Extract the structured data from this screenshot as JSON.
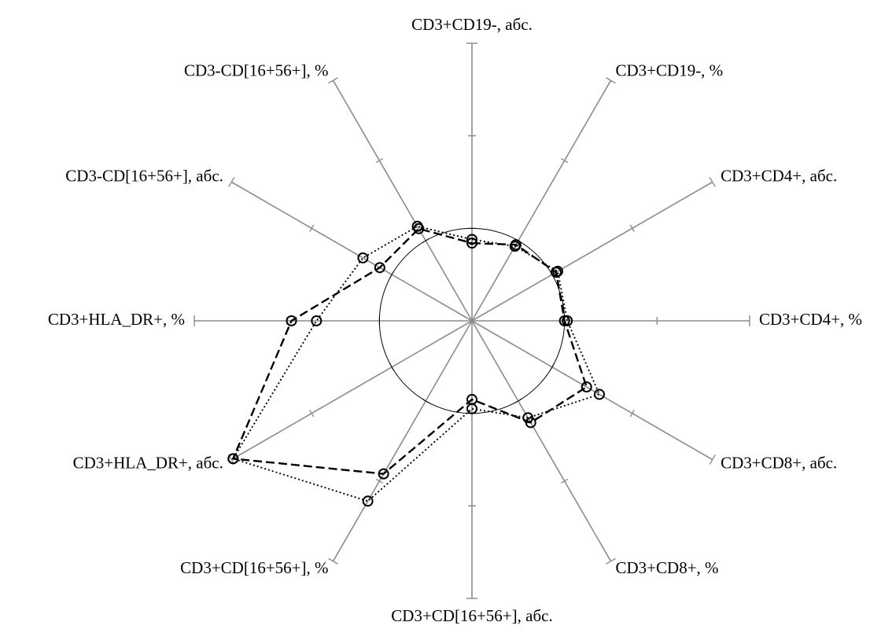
{
  "chart_data": {
    "type": "radar",
    "axes": [
      "CD3+CD19-, абс.",
      "CD3+CD19-, %",
      "CD3+CD4+, абс.",
      "CD3+CD4+, %",
      "CD3+CD8+, абс.",
      "CD3+CD8+, %",
      "CD3+CD[16+56+], абс.",
      "CD3+CD[16+56+], %",
      "CD3+HLA_DR+, абс.",
      "CD3+HLA_DR+, %",
      "CD3-CD[16+56+], абс.",
      "CD3-CD[16+56+], %"
    ],
    "scale_max": 3,
    "ticks": [
      1,
      2,
      3
    ],
    "reference_circle": 1,
    "series": [
      {
        "style": "dashed",
        "values": [
          0.84,
          0.95,
          1.05,
          1.0,
          1.43,
          1.27,
          0.85,
          1.91,
          2.98,
          1.95,
          1.15,
          1.15
        ]
      },
      {
        "style": "dotted",
        "values": [
          0.88,
          0.93,
          1.07,
          1.03,
          1.59,
          1.21,
          0.95,
          2.25,
          2.98,
          1.68,
          1.36,
          1.18
        ]
      }
    ],
    "grid": false,
    "legend": "none"
  }
}
